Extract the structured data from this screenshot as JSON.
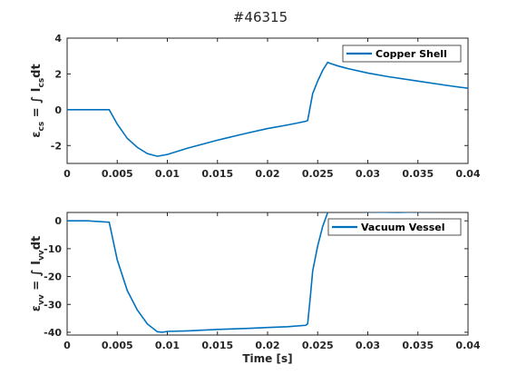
{
  "figure": {
    "title": "#46315",
    "colors": {
      "line": "#0072bd",
      "axis": "#262626",
      "background": "#ffffff"
    }
  },
  "chart_data": [
    {
      "type": "line",
      "title": "",
      "xlabel": "",
      "ylabel": {
        "main": "ε",
        "main_sub": "cs",
        "eq": " = ∫ I",
        "eq_sub": "cs",
        "tail": "dt"
      },
      "xlim": [
        0,
        0.04
      ],
      "ylim": [
        -3,
        4
      ],
      "xticks": [
        0,
        0.005,
        0.01,
        0.015,
        0.02,
        0.025,
        0.03,
        0.035,
        0.04
      ],
      "xtick_labels": [
        "0",
        "0.005",
        "0.01",
        "0.015",
        "0.02",
        "0.025",
        "0.03",
        "0.035",
        "0.04"
      ],
      "yticks": [
        -2,
        0,
        2,
        4
      ],
      "ytick_labels": [
        "-2",
        "0",
        "2",
        "4"
      ],
      "grid": false,
      "legend": {
        "position": "top-right"
      },
      "series": [
        {
          "name": "Copper Shell",
          "x": [
            0,
            0.002,
            0.0042,
            0.005,
            0.006,
            0.007,
            0.008,
            0.009,
            0.0095,
            0.01,
            0.012,
            0.015,
            0.018,
            0.02,
            0.022,
            0.0238,
            0.024,
            0.0243,
            0.0245,
            0.025,
            0.0255,
            0.026,
            0.0262,
            0.027,
            0.028,
            0.03,
            0.032,
            0.035,
            0.038,
            0.04
          ],
          "y": [
            0,
            0,
            0,
            -0.8,
            -1.6,
            -2.1,
            -2.45,
            -2.6,
            -2.55,
            -2.5,
            -2.15,
            -1.7,
            -1.3,
            -1.05,
            -0.85,
            -0.65,
            -0.6,
            0.3,
            0.9,
            1.6,
            2.2,
            2.65,
            2.6,
            2.45,
            2.3,
            2.05,
            1.85,
            1.6,
            1.35,
            1.2
          ]
        }
      ]
    },
    {
      "type": "line",
      "title": "",
      "xlabel": "Time [s]",
      "ylabel": {
        "main": "ε",
        "main_sub": "vv",
        "eq": " = ∫ I",
        "eq_sub": "vv",
        "tail": "dt"
      },
      "xlim": [
        0,
        0.04
      ],
      "ylim": [
        -41,
        3
      ],
      "xticks": [
        0,
        0.005,
        0.01,
        0.015,
        0.02,
        0.025,
        0.03,
        0.035,
        0.04
      ],
      "xtick_labels": [
        "0",
        "0.005",
        "0.01",
        "0.015",
        "0.02",
        "0.025",
        "0.03",
        "0.035",
        "0.04"
      ],
      "yticks": [
        -40,
        -30,
        -20,
        -10,
        0
      ],
      "ytick_labels": [
        "-40",
        "-30",
        "-20",
        "-10",
        "0"
      ],
      "grid": false,
      "legend": {
        "position": "top-right"
      },
      "series": [
        {
          "name": "Vacuum Vessel",
          "x": [
            0,
            0.002,
            0.0042,
            0.005,
            0.006,
            0.007,
            0.008,
            0.009,
            0.0095,
            0.01,
            0.012,
            0.015,
            0.018,
            0.02,
            0.022,
            0.0238,
            0.024,
            0.0243,
            0.0245,
            0.025,
            0.0255,
            0.026,
            0.0262,
            0.027,
            0.03,
            0.033,
            0.035,
            0.04
          ],
          "y": [
            0,
            0,
            -0.5,
            -14,
            -25,
            -32,
            -37,
            -39.8,
            -40,
            -39.7,
            -39.5,
            -39,
            -38.6,
            -38.3,
            -38,
            -37.5,
            -37,
            -26,
            -18,
            -9,
            -2,
            3,
            5,
            3.5,
            3.2,
            3,
            3.2,
            3.3
          ]
        }
      ]
    }
  ]
}
